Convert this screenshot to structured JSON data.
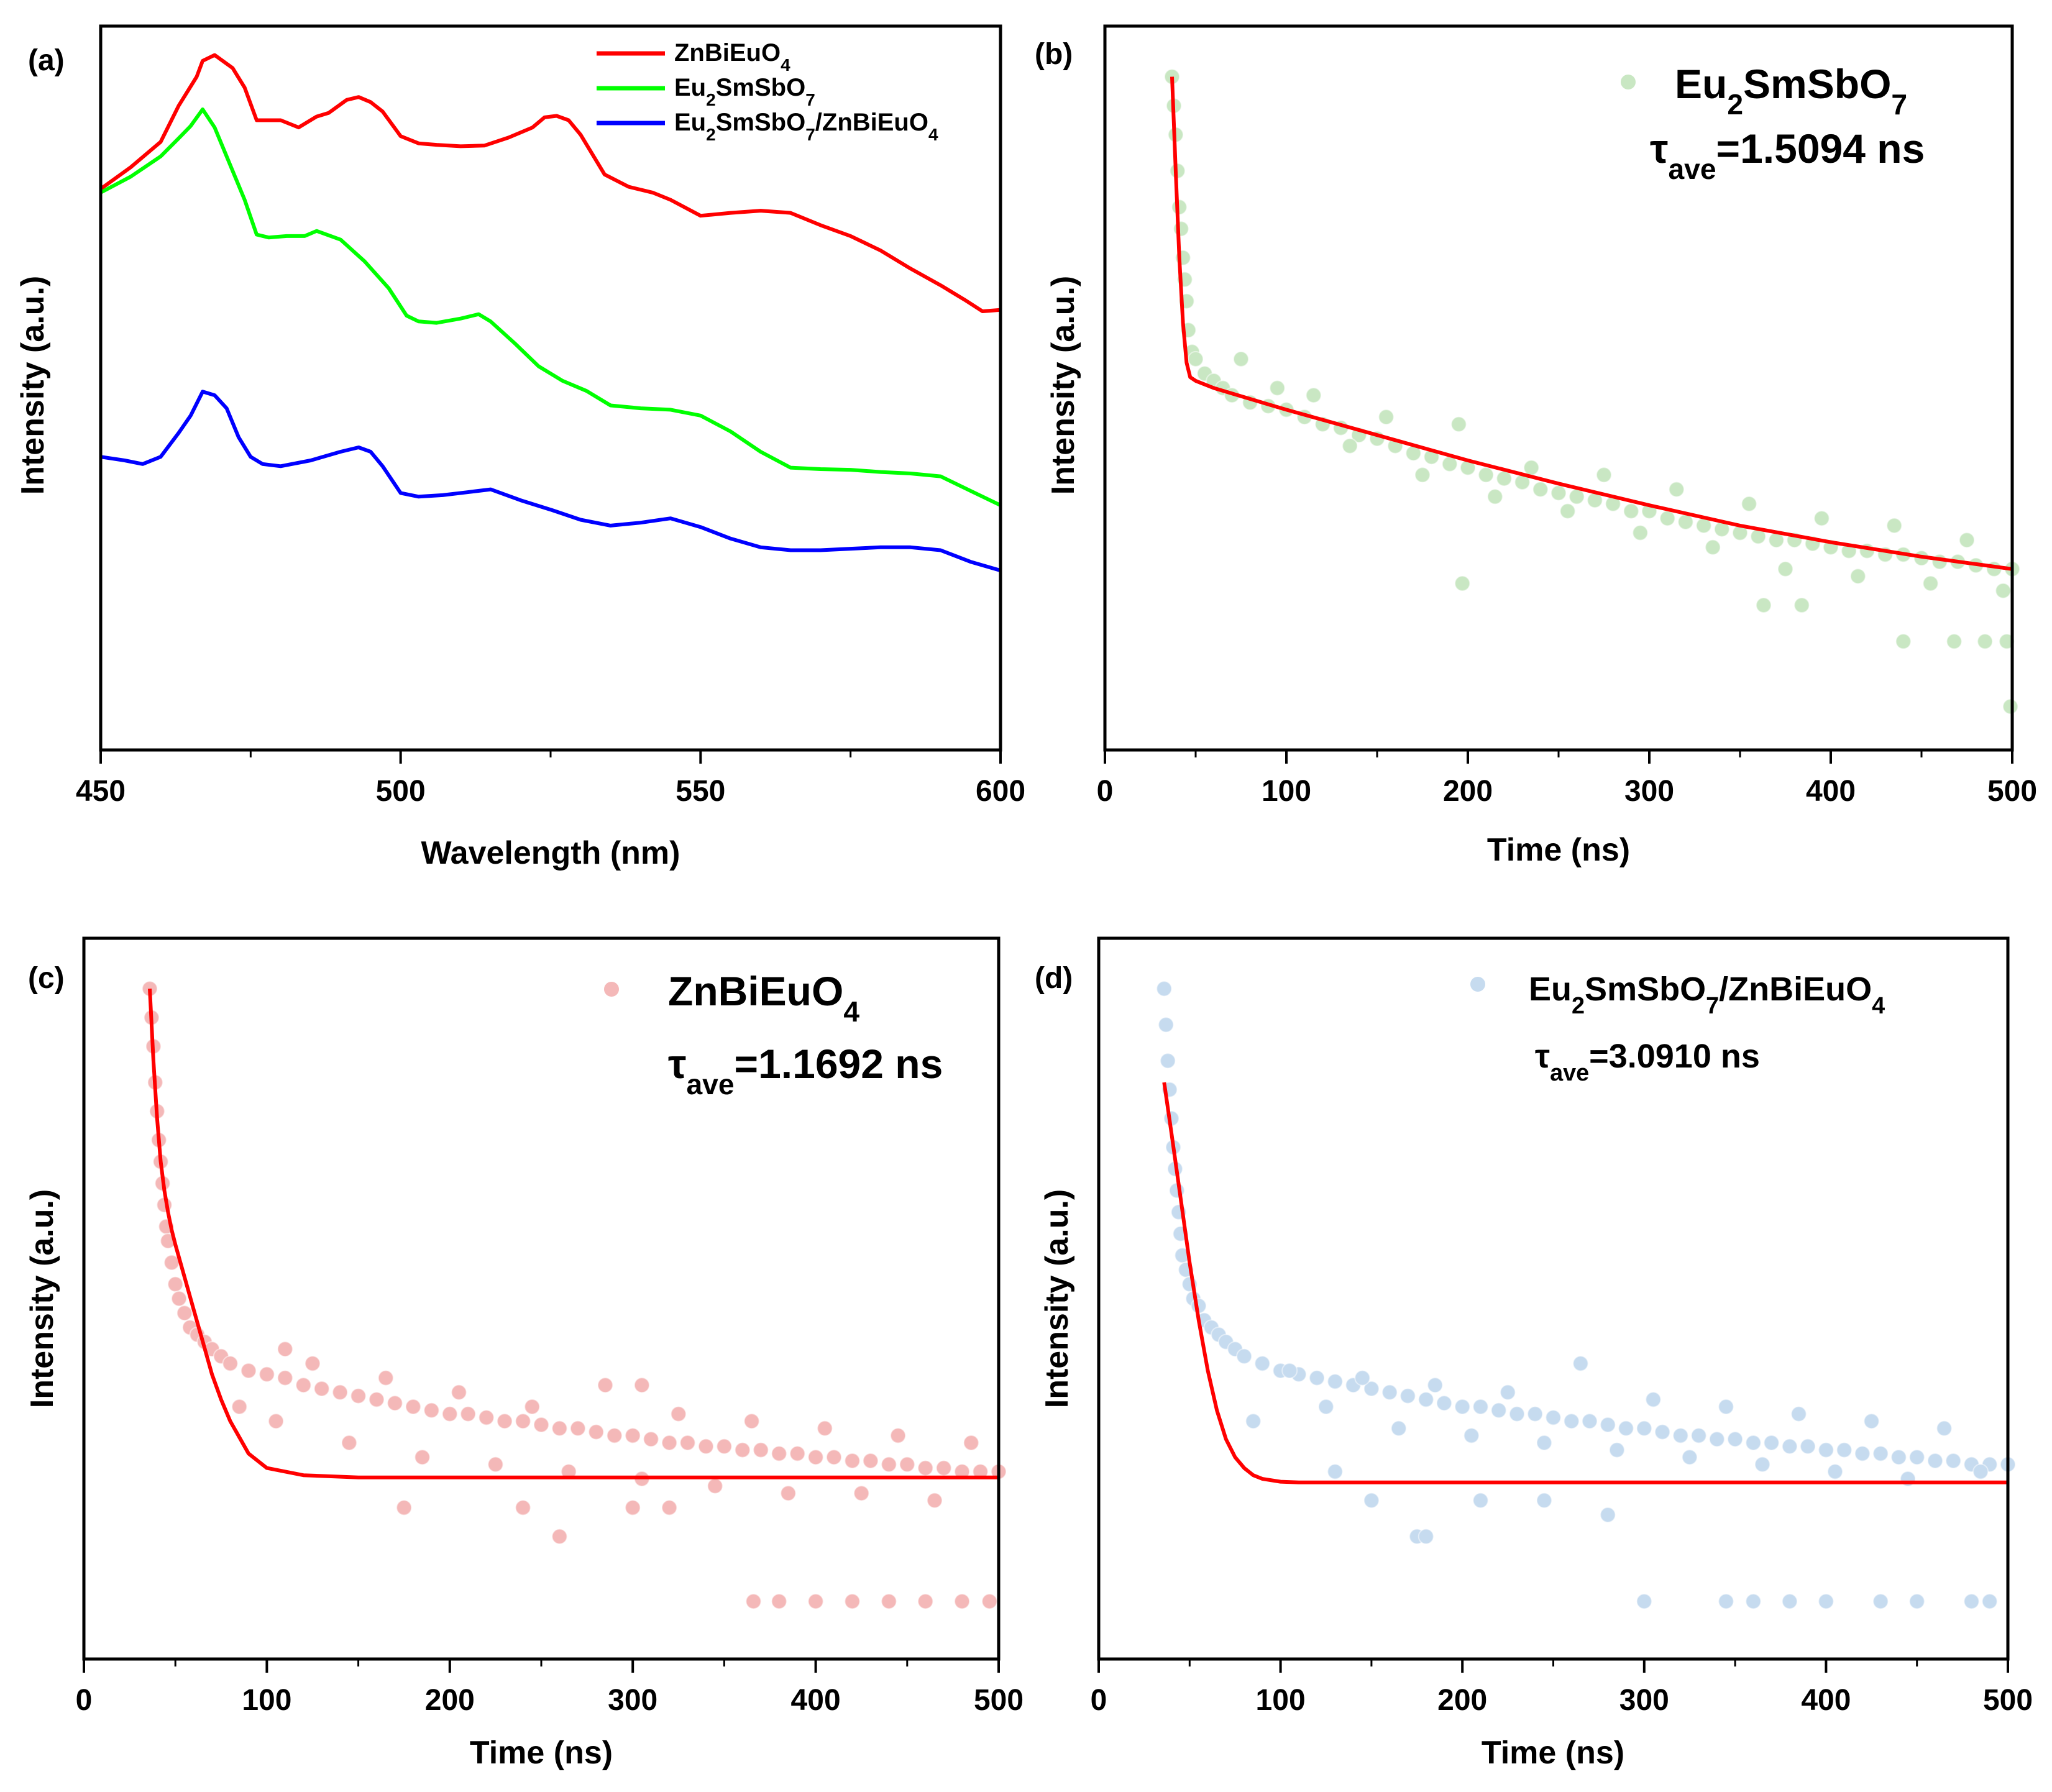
{
  "chart_data": [
    {
      "panel": "(a)",
      "type": "line",
      "xlabel": "Wavelength (nm)",
      "ylabel": "Intensity (a.u.)",
      "xlim": [
        450,
        600
      ],
      "ylim": [
        0,
        10
      ],
      "xticks": [
        "450",
        "500",
        "550",
        "600"
      ],
      "xtick_values": [
        450,
        500,
        550,
        600
      ],
      "legend_position": "top-right",
      "series": [
        {
          "name": "ZnBiEuO4",
          "label": {
            "pre": "ZnBiEuO",
            "sub": "4",
            "post": ""
          },
          "color": "#ff0000",
          "x": [
            450,
            455,
            460,
            463,
            466,
            467,
            469,
            472,
            474,
            476,
            478,
            480,
            483,
            486,
            488,
            491,
            493,
            495,
            497,
            500,
            503,
            506,
            510,
            514,
            518,
            522,
            524,
            526,
            528,
            530,
            534,
            538,
            542,
            545,
            550,
            555,
            560,
            565,
            570,
            575,
            580,
            585,
            590,
            594,
            597,
            600
          ],
          "y": [
            7.75,
            8.05,
            8.4,
            8.9,
            9.3,
            9.52,
            9.6,
            9.42,
            9.15,
            8.7,
            8.7,
            8.7,
            8.6,
            8.75,
            8.8,
            8.98,
            9.02,
            8.95,
            8.82,
            8.48,
            8.38,
            8.36,
            8.34,
            8.35,
            8.46,
            8.6,
            8.74,
            8.76,
            8.7,
            8.5,
            7.95,
            7.78,
            7.7,
            7.6,
            7.38,
            7.42,
            7.45,
            7.42,
            7.25,
            7.1,
            6.9,
            6.65,
            6.42,
            6.22,
            6.06,
            6.08
          ]
        },
        {
          "name": "Eu2SmSbO7",
          "label": {
            "pre": "Eu",
            "sub": "2",
            "mid": "SmSbO",
            "sub2": "7",
            "post": ""
          },
          "color": "#00ff00",
          "x": [
            450,
            455,
            460,
            463,
            465,
            467,
            469,
            471,
            474,
            476,
            478,
            481,
            484,
            486,
            490,
            494,
            498,
            501,
            503,
            506,
            510,
            513,
            515,
            519,
            523,
            527,
            531,
            535,
            540,
            545,
            550,
            555,
            560,
            565,
            570,
            575,
            580,
            585,
            590,
            595,
            600
          ],
          "y": [
            7.7,
            7.92,
            8.2,
            8.45,
            8.62,
            8.85,
            8.6,
            8.2,
            7.6,
            7.12,
            7.08,
            7.1,
            7.1,
            7.17,
            7.05,
            6.75,
            6.38,
            6.0,
            5.92,
            5.9,
            5.96,
            6.02,
            5.92,
            5.62,
            5.3,
            5.1,
            4.96,
            4.76,
            4.72,
            4.7,
            4.62,
            4.4,
            4.12,
            3.9,
            3.88,
            3.87,
            3.84,
            3.82,
            3.78,
            3.58,
            3.38
          ]
        },
        {
          "name": "Eu2SmSbO7/ZnBiEuO4",
          "label": {
            "pre": "Eu",
            "sub": "2",
            "mid": "SmSbO",
            "sub2": "7",
            "post": "/ZnBiEuO",
            "sub3": "4"
          },
          "color": "#0000ff",
          "x": [
            450,
            454,
            457,
            460,
            463,
            465,
            467,
            469,
            471,
            473,
            475,
            477,
            480,
            485,
            490,
            493,
            495,
            497,
            500,
            503,
            507,
            511,
            515,
            520,
            525,
            530,
            535,
            540,
            545,
            550,
            555,
            560,
            565,
            570,
            575,
            580,
            585,
            590,
            595,
            600
          ],
          "y": [
            4.05,
            4.0,
            3.95,
            4.05,
            4.38,
            4.62,
            4.95,
            4.9,
            4.72,
            4.32,
            4.05,
            3.95,
            3.92,
            4.0,
            4.12,
            4.18,
            4.12,
            3.92,
            3.55,
            3.5,
            3.52,
            3.56,
            3.6,
            3.45,
            3.32,
            3.18,
            3.1,
            3.14,
            3.2,
            3.08,
            2.92,
            2.8,
            2.76,
            2.76,
            2.78,
            2.8,
            2.8,
            2.76,
            2.6,
            2.48
          ]
        }
      ]
    },
    {
      "panel": "(b)",
      "type": "scatter",
      "xlabel": "Time (ns)",
      "ylabel": "Intensity (a.u.)",
      "xlim": [
        0,
        500
      ],
      "ylim": [
        0,
        10
      ],
      "xticks": [
        "0",
        "100",
        "200",
        "300",
        "400",
        "500"
      ],
      "xtick_values": [
        0,
        100,
        200,
        300,
        400,
        500
      ],
      "legend_position": "top-right",
      "series_name": "Eu2SmSbO7",
      "legend": {
        "pre": "Eu",
        "sub": "2",
        "mid": "SmSbO",
        "sub2": "7"
      },
      "tau_label": {
        "pre": "τ",
        "sub": "ave",
        "post": "=1.5094 ns"
      },
      "scatter_color": "#c9e7c3",
      "fit_color": "#ff0000",
      "scatter_points": {
        "x": [
          37,
          38,
          39,
          40,
          41,
          42,
          43,
          44,
          45,
          46,
          48,
          50,
          55,
          60,
          65,
          70,
          80,
          90,
          100,
          110,
          120,
          130,
          140,
          150,
          160,
          170,
          180,
          190,
          200,
          210,
          220,
          230,
          240,
          250,
          260,
          270,
          280,
          290,
          300,
          310,
          320,
          330,
          340,
          350,
          360,
          370,
          380,
          390,
          400,
          410,
          420,
          430,
          440,
          450,
          460,
          470,
          480,
          490,
          500,
          75,
          95,
          115,
          135,
          155,
          175,
          195,
          215,
          235,
          255,
          275,
          295,
          315,
          335,
          355,
          375,
          395,
          415,
          435,
          455,
          475,
          495,
          197,
          363,
          384,
          440,
          468,
          485,
          497,
          499
        ],
        "y": [
          9.3,
          8.9,
          8.5,
          8.0,
          7.5,
          7.2,
          6.8,
          6.5,
          6.2,
          5.8,
          5.5,
          5.4,
          5.2,
          5.1,
          5.0,
          4.9,
          4.8,
          4.75,
          4.7,
          4.6,
          4.5,
          4.45,
          4.35,
          4.3,
          4.2,
          4.1,
          4.05,
          3.95,
          3.9,
          3.8,
          3.75,
          3.7,
          3.6,
          3.55,
          3.5,
          3.45,
          3.4,
          3.3,
          3.3,
          3.2,
          3.15,
          3.1,
          3.05,
          3.0,
          2.95,
          2.9,
          2.9,
          2.85,
          2.8,
          2.75,
          2.75,
          2.7,
          2.7,
          2.65,
          2.6,
          2.6,
          2.55,
          2.5,
          2.5,
          5.4,
          5.0,
          4.9,
          4.2,
          4.6,
          3.8,
          4.5,
          3.5,
          3.9,
          3.3,
          3.8,
          3.0,
          3.6,
          2.8,
          3.4,
          2.5,
          3.2,
          2.4,
          3.1,
          2.3,
          2.9,
          2.2,
          2.3,
          2.0,
          2.0,
          1.5,
          1.5,
          1.5,
          1.5,
          0.6
        ]
      },
      "fit": {
        "x": [
          37,
          39,
          41,
          43,
          45,
          47,
          50,
          60,
          80,
          100,
          150,
          200,
          250,
          300,
          350,
          400,
          450,
          500
        ],
        "y": [
          9.3,
          8.0,
          6.8,
          5.9,
          5.35,
          5.15,
          5.1,
          5.0,
          4.85,
          4.7,
          4.35,
          4.0,
          3.68,
          3.38,
          3.1,
          2.87,
          2.67,
          2.5
        ]
      }
    },
    {
      "panel": "(c)",
      "type": "scatter",
      "xlabel": "Time (ns)",
      "ylabel": "Intensity (a.u.)",
      "xlim": [
        0,
        500
      ],
      "ylim": [
        0,
        10
      ],
      "xticks": [
        "0",
        "100",
        "200",
        "300",
        "400",
        "500"
      ],
      "xtick_values": [
        0,
        100,
        200,
        300,
        400,
        500
      ],
      "legend_position": "top-right",
      "series_name": "ZnBiEuO4",
      "legend": {
        "pre": "ZnBiEuO",
        "sub": "4"
      },
      "tau_label": {
        "pre": "τ",
        "sub": "ave",
        "post": "=1.1692 ns"
      },
      "scatter_color": "#f4b8b8",
      "fit_color": "#ff0000",
      "scatter_points": {
        "x": [
          36,
          37,
          38,
          39,
          40,
          41,
          42,
          43,
          44,
          45,
          46,
          48,
          50,
          52,
          55,
          58,
          62,
          66,
          70,
          75,
          80,
          90,
          100,
          110,
          120,
          130,
          140,
          150,
          160,
          170,
          180,
          190,
          200,
          210,
          220,
          230,
          240,
          250,
          260,
          270,
          280,
          290,
          300,
          310,
          320,
          330,
          340,
          350,
          360,
          370,
          380,
          390,
          400,
          410,
          420,
          430,
          440,
          450,
          460,
          470,
          480,
          490,
          500,
          85,
          105,
          125,
          145,
          165,
          185,
          205,
          225,
          245,
          265,
          285,
          305,
          325,
          345,
          365,
          385,
          405,
          425,
          445,
          465,
          485,
          175,
          240,
          260,
          300,
          320,
          366,
          380,
          400,
          420,
          440,
          460,
          480,
          495,
          110,
          305
        ],
        "y": [
          9.3,
          8.9,
          8.5,
          8.0,
          7.6,
          7.2,
          6.9,
          6.6,
          6.3,
          6.0,
          5.8,
          5.5,
          5.2,
          5.0,
          4.8,
          4.6,
          4.5,
          4.4,
          4.3,
          4.2,
          4.1,
          4.0,
          3.95,
          3.9,
          3.8,
          3.75,
          3.7,
          3.65,
          3.6,
          3.55,
          3.5,
          3.45,
          3.4,
          3.4,
          3.35,
          3.3,
          3.3,
          3.25,
          3.2,
          3.2,
          3.15,
          3.1,
          3.1,
          3.05,
          3.0,
          3.0,
          2.95,
          2.95,
          2.9,
          2.9,
          2.85,
          2.85,
          2.8,
          2.8,
          2.75,
          2.75,
          2.7,
          2.7,
          2.65,
          2.65,
          2.6,
          2.6,
          2.6,
          3.5,
          3.3,
          4.1,
          3.0,
          3.9,
          2.8,
          3.7,
          2.7,
          3.5,
          2.6,
          3.8,
          2.5,
          3.4,
          2.4,
          3.3,
          2.3,
          3.2,
          2.3,
          3.1,
          2.2,
          3.0,
          2.1,
          2.1,
          1.7,
          2.1,
          2.1,
          0.8,
          0.8,
          0.8,
          0.8,
          0.8,
          0.8,
          0.8,
          0.8,
          4.3,
          3.8
        ]
      },
      "fit": {
        "x": [
          36,
          38,
          40,
          42,
          44,
          46,
          48,
          50,
          55,
          60,
          65,
          70,
          75,
          80,
          90,
          100,
          120,
          150,
          200,
          300,
          400,
          500
        ],
        "y": [
          9.3,
          8.3,
          7.5,
          6.9,
          6.5,
          6.2,
          5.95,
          5.75,
          5.3,
          4.85,
          4.4,
          3.95,
          3.6,
          3.3,
          2.85,
          2.65,
          2.55,
          2.52,
          2.52,
          2.52,
          2.52,
          2.52
        ]
      }
    },
    {
      "panel": "(d)",
      "type": "scatter",
      "xlabel": "Time (ns)",
      "ylabel": "Intensity (a.u.)",
      "xlim": [
        0,
        500
      ],
      "ylim": [
        0,
        10
      ],
      "xticks": [
        "0",
        "100",
        "200",
        "300",
        "400",
        "500"
      ],
      "xtick_values": [
        0,
        100,
        200,
        300,
        400,
        500
      ],
      "legend_position": "top-right",
      "series_name": "Eu2SmSbO7/ZnBiEuO4",
      "legend": {
        "pre": "Eu",
        "sub": "2",
        "mid": "SmSbO",
        "sub2": "7",
        "post": "/ZnBiEuO",
        "sub3": "4"
      },
      "tau_label": {
        "pre": "τ",
        "sub": "ave",
        "post": "=3.0910 ns"
      },
      "scatter_color": "#c6dbef",
      "fit_color": "#ff0000",
      "scatter_points": {
        "x": [
          36,
          37,
          38,
          39,
          40,
          41,
          42,
          43,
          44,
          45,
          46,
          48,
          50,
          52,
          55,
          58,
          62,
          66,
          70,
          75,
          80,
          90,
          100,
          110,
          120,
          130,
          140,
          150,
          160,
          170,
          180,
          190,
          200,
          210,
          220,
          230,
          240,
          250,
          260,
          270,
          280,
          290,
          300,
          310,
          320,
          330,
          340,
          350,
          360,
          370,
          380,
          390,
          400,
          410,
          420,
          430,
          440,
          450,
          460,
          470,
          480,
          490,
          500,
          85,
          105,
          125,
          145,
          165,
          185,
          205,
          225,
          245,
          265,
          285,
          305,
          325,
          345,
          365,
          385,
          405,
          425,
          445,
          465,
          485,
          130,
          150,
          175,
          180,
          210,
          245,
          280,
          300,
          345,
          360,
          380,
          400,
          430,
          450,
          480,
          490
        ],
        "y": [
          9.3,
          8.8,
          8.3,
          7.9,
          7.5,
          7.1,
          6.8,
          6.5,
          6.2,
          5.9,
          5.6,
          5.4,
          5.2,
          5.0,
          4.9,
          4.7,
          4.6,
          4.5,
          4.4,
          4.3,
          4.2,
          4.1,
          4.0,
          3.95,
          3.9,
          3.85,
          3.8,
          3.75,
          3.7,
          3.65,
          3.6,
          3.55,
          3.5,
          3.5,
          3.45,
          3.4,
          3.4,
          3.35,
          3.3,
          3.3,
          3.25,
          3.2,
          3.2,
          3.15,
          3.1,
          3.1,
          3.05,
          3.05,
          3.0,
          3.0,
          2.95,
          2.95,
          2.9,
          2.9,
          2.85,
          2.85,
          2.8,
          2.8,
          2.75,
          2.75,
          2.7,
          2.7,
          2.7,
          3.3,
          4.0,
          3.5,
          3.9,
          3.2,
          3.8,
          3.1,
          3.7,
          3.0,
          4.1,
          2.9,
          3.6,
          2.8,
          3.5,
          2.7,
          3.4,
          2.6,
          3.3,
          2.5,
          3.2,
          2.6,
          2.6,
          2.2,
          1.7,
          1.7,
          2.2,
          2.2,
          2.0,
          0.8,
          0.8,
          0.8,
          0.8,
          0.8,
          0.8,
          0.8,
          0.8,
          0.8
        ]
      },
      "fit": {
        "x": [
          36,
          40,
          45,
          50,
          55,
          60,
          65,
          70,
          75,
          80,
          85,
          90,
          100,
          110,
          150,
          200,
          300,
          400,
          500
        ],
        "y": [
          8.0,
          7.3,
          6.4,
          5.5,
          4.7,
          4.0,
          3.45,
          3.05,
          2.8,
          2.65,
          2.55,
          2.5,
          2.46,
          2.45,
          2.45,
          2.45,
          2.45,
          2.45,
          2.45
        ]
      }
    }
  ]
}
